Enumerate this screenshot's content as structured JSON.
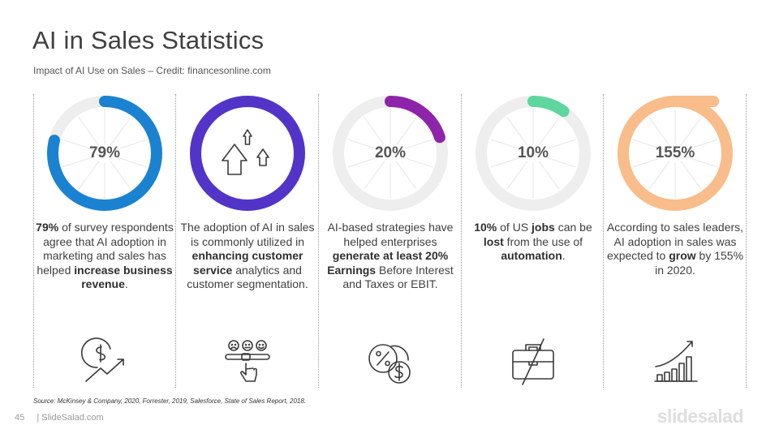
{
  "header": {
    "title": "AI in Sales Statistics",
    "subtitle": "Impact of AI Use on Sales – Credit: financesonline.com"
  },
  "stats": [
    {
      "value": 79,
      "label": "79%",
      "color": "#1b82d1",
      "icon": "dollar-growth-icon",
      "parts": [
        {
          "t": "79%",
          "b": true
        },
        {
          "t": " of survey respondents agree that AI adoption in marketing and sales has helped ",
          "b": false
        },
        {
          "t": "increase business revenue",
          "b": true
        },
        {
          "t": ".",
          "b": false
        }
      ]
    },
    {
      "value": 100,
      "label": "",
      "color": "#5234c9",
      "icon": "arrows-up-icon",
      "parts": [
        {
          "t": "The adoption of AI in sales is commonly utilized in ",
          "b": false
        },
        {
          "t": "enhancing customer service",
          "b": true
        },
        {
          "t": " analytics and customer segmentation.",
          "b": false
        }
      ]
    },
    {
      "value": 20,
      "label": "20%",
      "color": "#8e24aa",
      "icon": "percent-dollar-coins-icon",
      "parts": [
        {
          "t": "AI-based strategies have helped enterprises ",
          "b": false
        },
        {
          "t": "generate at least 20% Earnings",
          "b": true
        },
        {
          "t": " Before Interest and Taxes or EBIT.",
          "b": false
        }
      ]
    },
    {
      "value": 10,
      "label": "10%",
      "color": "#5fd69e",
      "icon": "briefcase-crossed-icon",
      "parts": [
        {
          "t": "10%",
          "b": true
        },
        {
          "t": " of US ",
          "b": false
        },
        {
          "t": "jobs",
          "b": true
        },
        {
          "t": " can be ",
          "b": false
        },
        {
          "t": "lost",
          "b": true
        },
        {
          "t": " from the use of ",
          "b": false
        },
        {
          "t": "automation",
          "b": true
        },
        {
          "t": ".",
          "b": false
        }
      ]
    },
    {
      "value": 155,
      "label": "155%",
      "color": "#f8bd8a",
      "icon": "bar-growth-icon",
      "parts": [
        {
          "t": "According to sales leaders, AI adoption in sales was expected to ",
          "b": false
        },
        {
          "t": "grow",
          "b": true
        },
        {
          "t": " by 155% in 2020.",
          "b": false
        }
      ]
    }
  ],
  "source": "Source: McKinsey & Company, 2020, Forrester, 2019, Salesforce, State of Sales Report, 2018.",
  "footer": {
    "page_number": "45",
    "site": "| SlideSalad.com",
    "logo": "slidesalad"
  },
  "colors": {
    "track": "#eeeeee",
    "spoke": "#e6e6e6",
    "icon_stroke": "#3a3a3a"
  }
}
